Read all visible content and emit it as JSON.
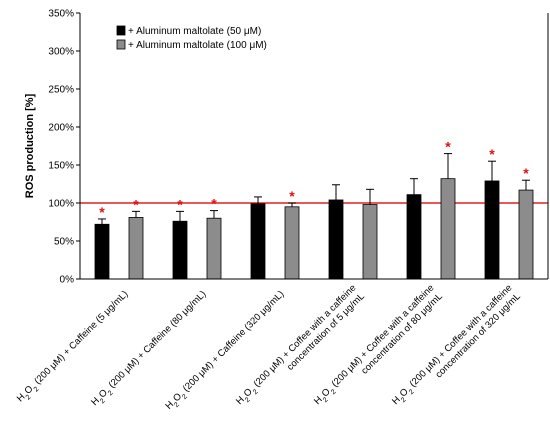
{
  "chart_data": {
    "type": "bar",
    "ylabel": "ROS production [%]",
    "ylim": [
      0,
      350
    ],
    "yticks": [
      0,
      50,
      100,
      150,
      200,
      250,
      300,
      350
    ],
    "ytick_labels": [
      "0%",
      "50%",
      "100%",
      "150%",
      "200%",
      "250%",
      "300%",
      "350%"
    ],
    "reference_line": {
      "value": 100,
      "color": "#e02020"
    },
    "legend_position": "top-left",
    "categories": [
      [
        "H",
        "2",
        "O",
        "2",
        " (200 μM) + Caffeine (5 μg/mL)"
      ],
      [
        "H",
        "2",
        "O",
        "2",
        " (200 μM) + Caffeine (80 μg/mL)"
      ],
      [
        "H",
        "2",
        "O",
        "2",
        " (200 μM) + Caffeine (320 μg/mL)"
      ],
      [
        "H",
        "2",
        "O",
        "2",
        " (200 μM) + Coffee with a caffeine",
        "concentration of 5 μg/mL"
      ],
      [
        "H",
        "2",
        "O",
        "2",
        " (200 μM) + Coffee with a caffeine",
        "concentration of 80 μg/mL"
      ],
      [
        "H",
        "2",
        "O",
        "2",
        " (200 μM) + Coffee with a caffeine",
        "concentration of 320 μg/mL"
      ]
    ],
    "series": [
      {
        "name": "+ Aluminum maltolate (50 μM)",
        "color": "#000000",
        "values": [
          72,
          76,
          99,
          104,
          111,
          129
        ],
        "errors": [
          7,
          13,
          9,
          20,
          21,
          26
        ],
        "significant": [
          true,
          true,
          false,
          false,
          false,
          true
        ]
      },
      {
        "name": "+ Aluminum maltolate (100 μM)",
        "color": "#8c8c8c",
        "values": [
          81,
          80,
          95,
          98,
          132,
          117
        ],
        "errors": [
          8,
          10,
          5,
          20,
          33,
          13
        ],
        "significant": [
          true,
          true,
          true,
          false,
          true,
          true
        ]
      }
    ],
    "significance_marker": "*",
    "significance_color": "#e01010"
  }
}
